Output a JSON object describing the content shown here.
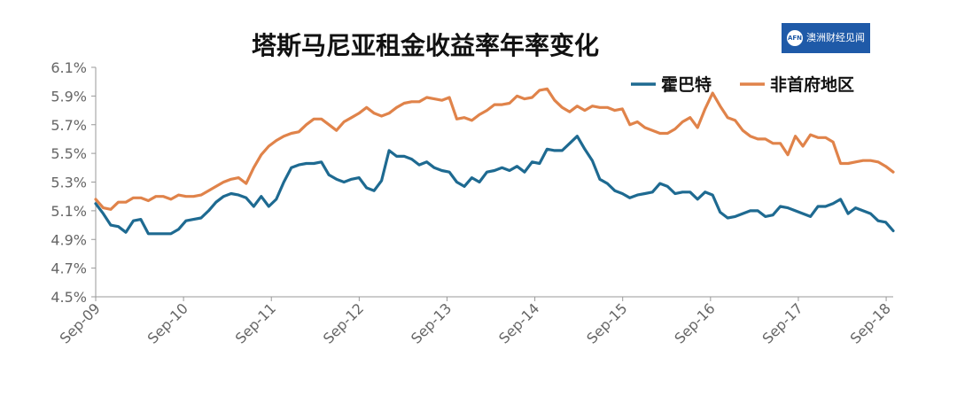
{
  "title": "塔斯马尼亚租金收益率年率变化",
  "logo": {
    "mark": "AFN",
    "text": "澳洲财经见闻"
  },
  "colors": {
    "hobart": "#1e6a91",
    "non_capital": "#e0834a",
    "axis": "#999999"
  },
  "chart_data": {
    "type": "line",
    "title": "塔斯马尼亚租金收益率年率变化",
    "x_ticks": [
      "Sep-09",
      "Sep-10",
      "Sep-11",
      "Sep-12",
      "Sep-13",
      "Sep-14",
      "Sep-15",
      "Sep-16",
      "Sep-17",
      "Sep-18"
    ],
    "y_ticks": [
      "4.5%",
      "4.7%",
      "4.9%",
      "5.1%",
      "5.3%",
      "5.5%",
      "5.7%",
      "5.9%",
      "6.1%"
    ],
    "ylim": [
      4.5,
      6.1
    ],
    "x_start": "2009-09",
    "legend": "top-right",
    "series": [
      {
        "name": "霍巴特",
        "color": "#1e6a91",
        "values": [
          5.15,
          5.08,
          5.0,
          4.99,
          4.95,
          5.03,
          5.04,
          4.94,
          4.94,
          4.94,
          4.94,
          4.97,
          5.03,
          5.04,
          5.05,
          5.1,
          5.16,
          5.2,
          5.22,
          5.21,
          5.19,
          5.13,
          5.2,
          5.13,
          5.18,
          5.3,
          5.4,
          5.42,
          5.43,
          5.43,
          5.44,
          5.35,
          5.32,
          5.3,
          5.32,
          5.33,
          5.26,
          5.24,
          5.31,
          5.52,
          5.48,
          5.48,
          5.46,
          5.42,
          5.44,
          5.4,
          5.38,
          5.37,
          5.3,
          5.27,
          5.33,
          5.3,
          5.37,
          5.38,
          5.4,
          5.38,
          5.41,
          5.37,
          5.44,
          5.43,
          5.53,
          5.52,
          5.52,
          5.57,
          5.62,
          5.53,
          5.45,
          5.32,
          5.29,
          5.24,
          5.22,
          5.19,
          5.21,
          5.22,
          5.23,
          5.29,
          5.27,
          5.22,
          5.23,
          5.23,
          5.18,
          5.23,
          5.21,
          5.09,
          5.05,
          5.06,
          5.08,
          5.1,
          5.1,
          5.06,
          5.07,
          5.13,
          5.12,
          5.1,
          5.08,
          5.06,
          5.13,
          5.13,
          5.15,
          5.18,
          5.08,
          5.12,
          5.1,
          5.08,
          5.03,
          5.02,
          4.96
        ]
      },
      {
        "name": "非首府地区",
        "color": "#e0834a",
        "values": [
          5.18,
          5.12,
          5.11,
          5.16,
          5.16,
          5.19,
          5.19,
          5.17,
          5.2,
          5.2,
          5.18,
          5.21,
          5.2,
          5.2,
          5.21,
          5.24,
          5.27,
          5.3,
          5.32,
          5.33,
          5.29,
          5.4,
          5.49,
          5.55,
          5.59,
          5.62,
          5.64,
          5.65,
          5.7,
          5.74,
          5.74,
          5.7,
          5.66,
          5.72,
          5.75,
          5.78,
          5.82,
          5.78,
          5.76,
          5.78,
          5.82,
          5.85,
          5.86,
          5.86,
          5.89,
          5.88,
          5.87,
          5.89,
          5.74,
          5.75,
          5.73,
          5.77,
          5.8,
          5.84,
          5.84,
          5.85,
          5.9,
          5.88,
          5.89,
          5.94,
          5.95,
          5.87,
          5.82,
          5.79,
          5.83,
          5.8,
          5.83,
          5.82,
          5.82,
          5.8,
          5.81,
          5.7,
          5.72,
          5.68,
          5.66,
          5.64,
          5.64,
          5.67,
          5.72,
          5.75,
          5.68,
          5.81,
          5.92,
          5.83,
          5.75,
          5.73,
          5.66,
          5.62,
          5.6,
          5.6,
          5.57,
          5.57,
          5.49,
          5.62,
          5.55,
          5.63,
          5.61,
          5.61,
          5.58,
          5.43,
          5.43,
          5.44,
          5.45,
          5.45,
          5.44,
          5.41,
          5.37
        ]
      }
    ]
  }
}
